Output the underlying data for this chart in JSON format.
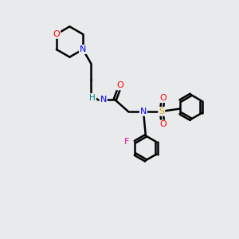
{
  "bg_color": "#e8eaeb",
  "atom_colors": {
    "N": "#0000ff",
    "O": "#ff0000",
    "S": "#ccaa00",
    "F": "#ff00aa",
    "C": "#000000",
    "H": "#008080"
  },
  "bond_color": "#000000",
  "bond_width": 1.8
}
